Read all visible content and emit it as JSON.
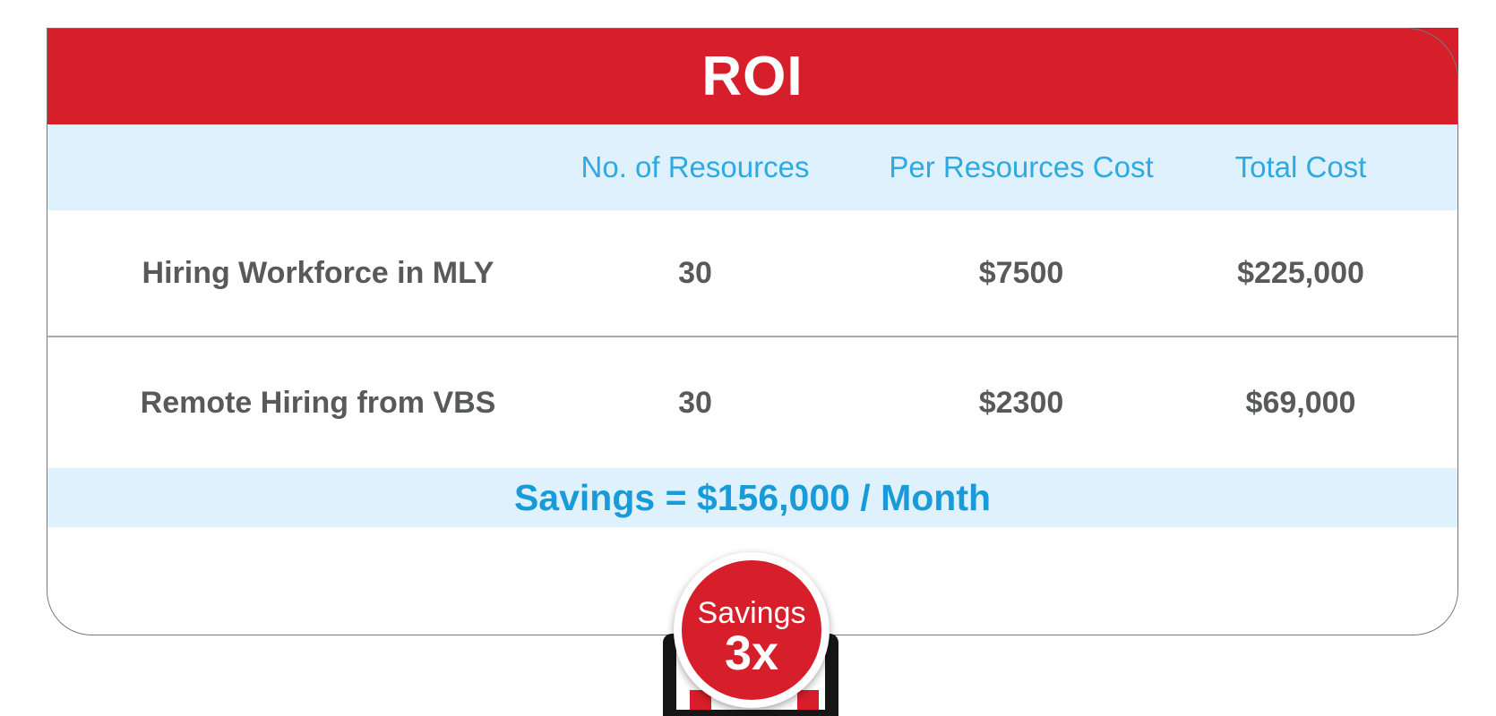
{
  "header": {
    "title": "ROI"
  },
  "table": {
    "columns": [
      "No. of Resources",
      "Per Resources Cost",
      "Total Cost"
    ],
    "rows": [
      {
        "label": "Hiring Workforce in MLY",
        "resources": "30",
        "per_cost": "$7500",
        "total_cost": "$225,000"
      },
      {
        "label": "Remote Hiring from VBS",
        "resources": "30",
        "per_cost": "$2300",
        "total_cost": "$69,000"
      }
    ]
  },
  "savings": {
    "text": "Savings = $156,000 / Month"
  },
  "badge": {
    "label": "Savings",
    "multiplier": "3x"
  },
  "chart_data": {
    "type": "table",
    "title": "ROI",
    "columns": [
      "",
      "No. of Resources",
      "Per Resources Cost",
      "Total Cost"
    ],
    "rows": [
      [
        "Hiring Workforce in MLY",
        30,
        "$7500",
        "$225,000"
      ],
      [
        "Remote Hiring from VBS",
        30,
        "$2300",
        "$69,000"
      ]
    ],
    "summary": "Savings = $156,000 / Month",
    "savings_per_month_usd": 156000,
    "savings_multiplier": "3x"
  },
  "colors": {
    "accent_red": "#D71E2B",
    "column_header_blue": "#2FA9E1",
    "savings_text_blue": "#189BD8",
    "light_blue_band": "#DFF1FC",
    "body_text_gray": "#58595B"
  }
}
